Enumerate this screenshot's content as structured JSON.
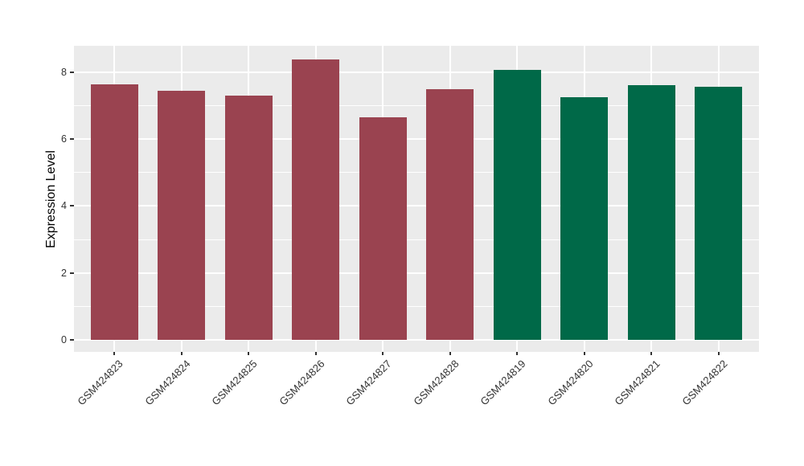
{
  "chart_data": {
    "type": "bar",
    "title": "",
    "xlabel": "",
    "ylabel": "Expression Level",
    "categories": [
      "GSM424823",
      "GSM424824",
      "GSM424825",
      "GSM424826",
      "GSM424827",
      "GSM424828",
      "GSM424819",
      "GSM424820",
      "GSM424821",
      "GSM424822"
    ],
    "values": [
      7.63,
      7.45,
      7.3,
      8.38,
      6.65,
      7.5,
      8.08,
      7.26,
      7.61,
      7.56
    ],
    "bar_colors": [
      "#9A4350",
      "#9A4350",
      "#9A4350",
      "#9A4350",
      "#9A4350",
      "#9A4350",
      "#006948",
      "#006948",
      "#006948",
      "#006948"
    ],
    "groups": [
      {
        "color": "#9A4350",
        "samples": [
          "GSM424823",
          "GSM424824",
          "GSM424825",
          "GSM424826",
          "GSM424827",
          "GSM424828"
        ]
      },
      {
        "color": "#006948",
        "samples": [
          "GSM424819",
          "GSM424820",
          "GSM424821",
          "GSM424822"
        ]
      }
    ],
    "y_ticks": [
      0,
      2,
      4,
      6,
      8
    ],
    "y_minor_ticks": [
      1,
      3,
      5,
      7
    ],
    "ylim": [
      -0.36,
      8.79
    ],
    "legend_position": "none",
    "grid": "on",
    "panel_bg": "#EBEBEB",
    "grid_color": "#FFFFFF",
    "tick_color": "#333333",
    "tick_label_color": "#333333",
    "axis_title_color": "#000000",
    "figure_bg": "#FFFFFF"
  }
}
